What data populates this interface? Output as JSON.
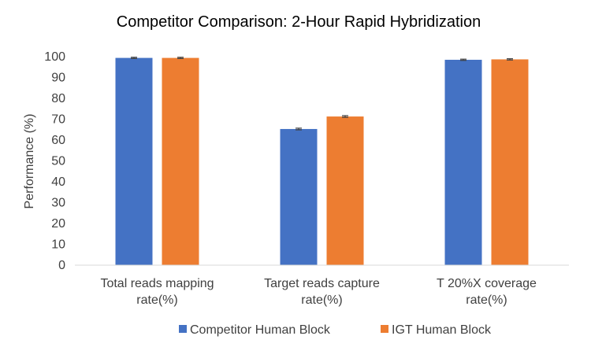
{
  "chart_data": {
    "type": "bar",
    "title": "Competitor Comparison: 2-Hour Rapid Hybridization",
    "xlabel": "",
    "ylabel": "Performance (%)",
    "ylim": [
      0,
      100
    ],
    "yticks": [
      0,
      10,
      20,
      30,
      40,
      50,
      60,
      70,
      80,
      90,
      100
    ],
    "categories": [
      [
        "Total reads mapping",
        "rate(%)"
      ],
      [
        "Target reads capture",
        "rate(%)"
      ],
      [
        "T 20%X coverage",
        "rate(%)"
      ]
    ],
    "series": [
      {
        "name": "Competitor Human Block",
        "color": "#4472C4",
        "values": [
          99.4,
          65.3,
          98.5
        ],
        "errors": [
          0.3,
          0.4,
          0.3
        ]
      },
      {
        "name": "IGT Human Block",
        "color": "#ED7D31",
        "values": [
          99.4,
          71.3,
          98.7
        ],
        "errors": [
          0.3,
          0.4,
          0.3
        ]
      }
    ],
    "grid": false,
    "legend_position": "bottom"
  }
}
